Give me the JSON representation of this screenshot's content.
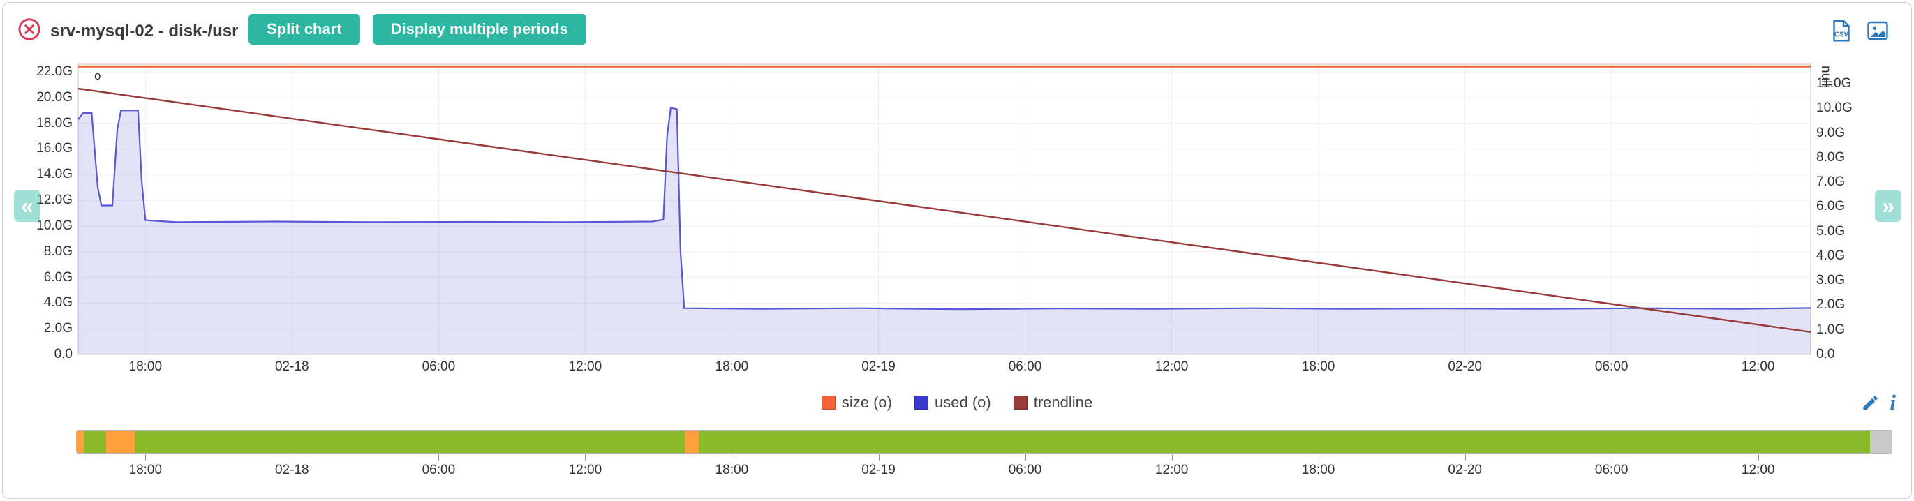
{
  "header": {
    "title": "srv-mysql-02 - disk-/usr",
    "buttons": [
      {
        "label": "Split chart"
      },
      {
        "label": "Display multiple periods"
      }
    ],
    "icons": {
      "close": "close-circle-icon",
      "csv": "csv-export-icon",
      "image": "image-export-icon"
    }
  },
  "nav": {
    "prev": "«",
    "next": "»"
  },
  "legend": {
    "items": [
      {
        "label": "size (o)",
        "color": "#f5623a"
      },
      {
        "label": "used (o)",
        "color": "#3a3ace"
      },
      {
        "label": "trendline",
        "color": "#993a39"
      }
    ],
    "tools": {
      "edit": "pencil-icon",
      "info": "info-icon"
    }
  },
  "chart_data": {
    "type": "area",
    "title": "srv-mysql-02 - disk-/usr",
    "grid": true,
    "legend_position": "bottom-center",
    "x_axis": {
      "range_hours": [
        0,
        70.9
      ],
      "ticks": [
        {
          "t": 2.75,
          "label": "18:00"
        },
        {
          "t": 8.75,
          "label": "02-18"
        },
        {
          "t": 14.75,
          "label": "06:00"
        },
        {
          "t": 20.75,
          "label": "12:00"
        },
        {
          "t": 26.75,
          "label": "18:00"
        },
        {
          "t": 32.75,
          "label": "02-19"
        },
        {
          "t": 38.75,
          "label": "06:00"
        },
        {
          "t": 44.75,
          "label": "12:00"
        },
        {
          "t": 50.75,
          "label": "18:00"
        },
        {
          "t": 56.75,
          "label": "02-20"
        },
        {
          "t": 62.75,
          "label": "06:00"
        },
        {
          "t": 68.75,
          "label": "12:00"
        }
      ]
    },
    "left_axis": {
      "unit": "G",
      "min": 0,
      "max": 22.6,
      "tick_step": 2,
      "tick_labels": [
        "0.0",
        "2.0G",
        "4.0G",
        "6.0G",
        "8.0G",
        "10.0G",
        "12.0G",
        "14.0G",
        "16.0G",
        "18.0G",
        "20.0G",
        "22.0G"
      ]
    },
    "right_axis": {
      "label": "null",
      "min": 0,
      "max": 11.8,
      "tick_step": 1,
      "tick_labels": [
        "0.0",
        "1.0G",
        "2.0G",
        "3.0G",
        "4.0G",
        "5.0G",
        "6.0G",
        "7.0G",
        "8.0G",
        "9.0G",
        "10.0G",
        "11.0G"
      ]
    },
    "series": [
      {
        "name": "size (o)",
        "type": "line",
        "axis": "left",
        "color": "#f5623a",
        "width": 3,
        "points": [
          [
            0,
            22.42
          ],
          [
            70.9,
            22.42
          ]
        ]
      },
      {
        "name": "used (o)",
        "type": "area",
        "axis": "left",
        "color": "#5858d6",
        "fill": "rgba(80,80,210,0.16)",
        "width": 2.2,
        "points": [
          [
            0,
            18.3
          ],
          [
            0.2,
            18.8
          ],
          [
            0.55,
            18.8
          ],
          [
            0.8,
            13.0
          ],
          [
            0.95,
            11.6
          ],
          [
            1.4,
            11.6
          ],
          [
            1.6,
            17.5
          ],
          [
            1.75,
            19.0
          ],
          [
            2.45,
            19.0
          ],
          [
            2.6,
            13.5
          ],
          [
            2.75,
            10.45
          ],
          [
            4,
            10.3
          ],
          [
            8,
            10.35
          ],
          [
            12,
            10.3
          ],
          [
            16,
            10.32
          ],
          [
            20,
            10.3
          ],
          [
            23.5,
            10.35
          ],
          [
            23.95,
            10.5
          ],
          [
            24.1,
            17.0
          ],
          [
            24.25,
            19.2
          ],
          [
            24.5,
            19.1
          ],
          [
            24.65,
            8.0
          ],
          [
            24.8,
            3.6
          ],
          [
            28,
            3.55
          ],
          [
            32,
            3.6
          ],
          [
            36,
            3.52
          ],
          [
            40,
            3.58
          ],
          [
            44,
            3.55
          ],
          [
            48,
            3.6
          ],
          [
            52,
            3.55
          ],
          [
            56,
            3.58
          ],
          [
            60,
            3.55
          ],
          [
            64,
            3.6
          ],
          [
            68,
            3.55
          ],
          [
            70.9,
            3.62
          ]
        ]
      },
      {
        "name": "trendline",
        "type": "line",
        "axis": "left",
        "color": "#993a39",
        "width": 2.4,
        "points": [
          [
            0,
            20.7
          ],
          [
            70.9,
            1.75
          ]
        ]
      }
    ],
    "annotations": {
      "point_marker": "o"
    }
  },
  "navigator": {
    "segments": [
      {
        "from": 0.0,
        "to": 0.004,
        "color": "#ffa03a"
      },
      {
        "from": 0.004,
        "to": 0.016,
        "color": "#8aba2a"
      },
      {
        "from": 0.016,
        "to": 0.032,
        "color": "#ffa03a"
      },
      {
        "from": 0.032,
        "to": 0.335,
        "color": "#8aba2a"
      },
      {
        "from": 0.335,
        "to": 0.343,
        "color": "#ffa03a"
      },
      {
        "from": 0.343,
        "to": 0.988,
        "color": "#8aba2a"
      },
      {
        "from": 0.988,
        "to": 1.0,
        "color": "#c9c9c9"
      }
    ]
  },
  "colors": {
    "accent_teal": "#2db7a3",
    "close_red": "#dc3551",
    "icon_blue": "#2e77b8",
    "nav_green": "#8aba2a",
    "nav_orange": "#ffa03a",
    "nav_gray": "#c9c9c9"
  }
}
